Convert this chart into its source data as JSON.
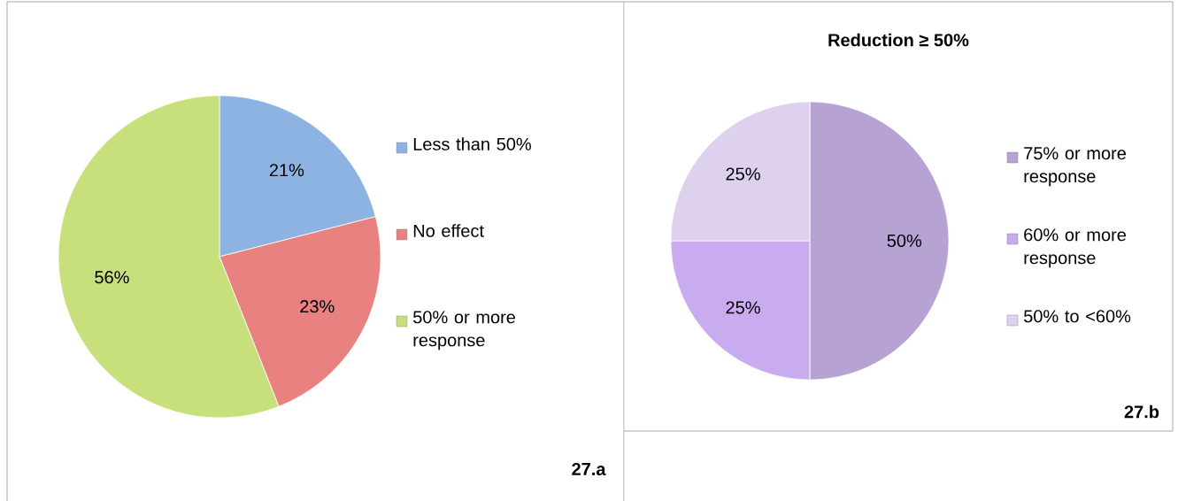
{
  "chart_data": [
    {
      "type": "pie",
      "categories": [
        "Less than 50%",
        "No effect",
        "50% or more response"
      ],
      "values": [
        21,
        23,
        56
      ],
      "value_labels": [
        "21%",
        "23%",
        "56%"
      ],
      "colors": [
        "#8db3e2",
        "#e8817f",
        "#c8e07c"
      ],
      "legend": "right",
      "annotations": [
        "27.a"
      ]
    },
    {
      "type": "pie",
      "title": "Reduction ≥ 50%",
      "categories": [
        "75% or more response",
        "60% or more response",
        "50% to <60%"
      ],
      "values": [
        50,
        25,
        25
      ],
      "value_labels": [
        "50%",
        "25%",
        "25%"
      ],
      "colors": [
        "#b6a2d3",
        "#c9abef",
        "#ddd1ee"
      ],
      "legend": "right",
      "annotations": [
        "27.b"
      ]
    }
  ]
}
